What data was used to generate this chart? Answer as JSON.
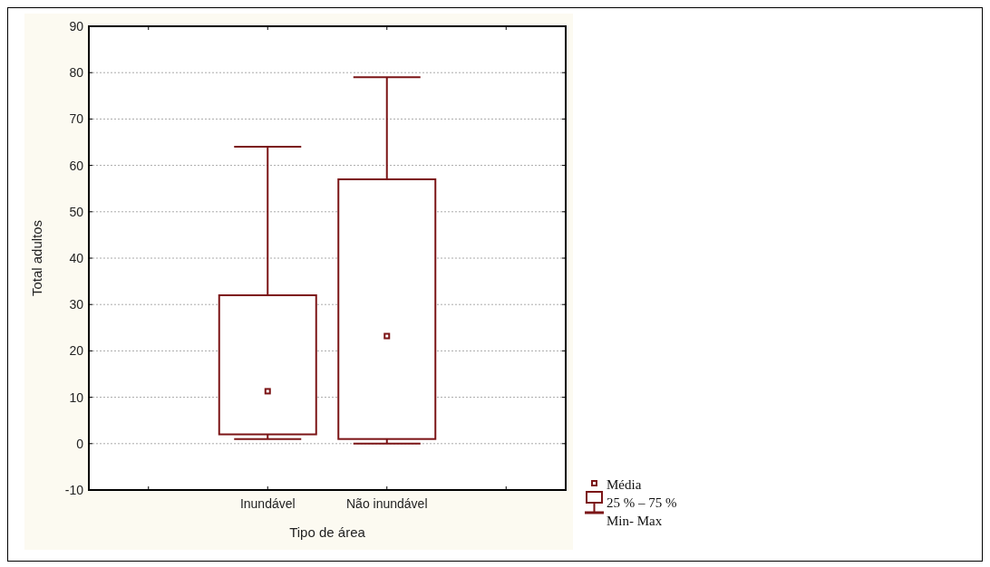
{
  "chart_data": {
    "type": "box",
    "xlabel": "Tipo de área",
    "ylabel": "Total adultos",
    "categories": [
      "Inundável",
      "Não inundável"
    ],
    "series": [
      {
        "color": "#7b1416",
        "boxes": [
          {
            "low": 1,
            "q1": 2,
            "q3": 32,
            "high": 64,
            "mean": 11.3
          },
          {
            "low": 0,
            "q1": 1,
            "q3": 57,
            "high": 79,
            "mean": 23.2
          }
        ]
      }
    ],
    "ylim": [
      -10,
      90
    ],
    "yticks": [
      -10,
      0,
      10,
      20,
      30,
      40,
      50,
      60,
      70,
      80,
      90
    ],
    "grid": "y",
    "annotations": [
      "Média",
      "25 % – 75 %",
      "Min- Max"
    ]
  }
}
